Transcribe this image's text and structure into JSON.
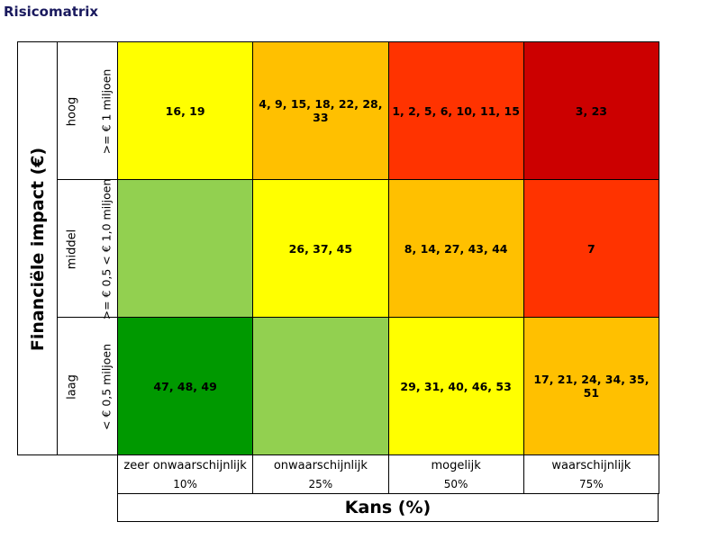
{
  "title": "Risicomatrix",
  "y_axis_label": "Financiële impact (€)",
  "x_axis_label": "Kans (%)",
  "rows": [
    {
      "label": "hoog",
      "range": ">= € 1 miljoen"
    },
    {
      "label": "middel",
      "range": ">= € 0,5 < € 1,0 miljoen"
    },
    {
      "label": "laag",
      "range": "< € 0,5 miljoen"
    }
  ],
  "columns": [
    {
      "label": "zeer onwaarschijnlijk",
      "percent": "10%"
    },
    {
      "label": "onwaarschijnlijk",
      "percent": "25%"
    },
    {
      "label": "mogelijk",
      "percent": "50%"
    },
    {
      "label": "waarschijnlijk",
      "percent": "75%"
    }
  ],
  "cells": [
    [
      "16, 19",
      "4, 9, 15, 18, 22, 28, 33",
      "1, 2, 5, 6, 10, 11, 15",
      "3, 23"
    ],
    [
      null,
      "26, 37, 45",
      "8, 14, 27, 43, 44",
      "7"
    ],
    [
      "47, 48, 49",
      null,
      "29, 31, 40, 46, 53",
      "17, 21, 24, 34, 35, 51"
    ]
  ]
}
